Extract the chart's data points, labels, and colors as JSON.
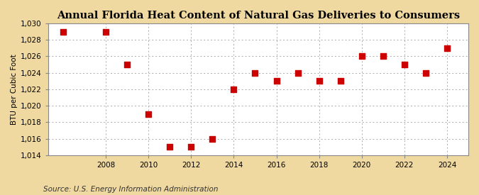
{
  "title": "Annual Florida Heat Content of Natural Gas Deliveries to Consumers",
  "ylabel": "BTU per Cubic Foot",
  "source": "Source: U.S. Energy Information Administration",
  "years": [
    2006,
    2008,
    2009,
    2010,
    2011,
    2012,
    2013,
    2014,
    2015,
    2016,
    2017,
    2018,
    2019,
    2020,
    2021,
    2022,
    2023,
    2024
  ],
  "values": [
    1029.0,
    1029.0,
    1025.0,
    1019.0,
    1015.0,
    1015.0,
    1016.0,
    1022.0,
    1024.0,
    1023.0,
    1024.0,
    1023.0,
    1023.0,
    1026.0,
    1026.0,
    1025.0,
    1024.0,
    1027.0
  ],
  "marker_color": "#cc0000",
  "marker_size": 28,
  "figure_bg": "#f0d9a0",
  "plot_bg": "#ffffff",
  "grid_color": "#aaaaaa",
  "ylim": [
    1014,
    1030
  ],
  "yticks": [
    1014,
    1016,
    1018,
    1020,
    1022,
    1024,
    1026,
    1028,
    1030
  ],
  "xticks": [
    2008,
    2010,
    2012,
    2014,
    2016,
    2018,
    2020,
    2022,
    2024
  ],
  "xlim": [
    2005.3,
    2025.0
  ],
  "title_fontsize": 10.5,
  "label_fontsize": 7.5,
  "tick_fontsize": 7.5,
  "source_fontsize": 7.5
}
